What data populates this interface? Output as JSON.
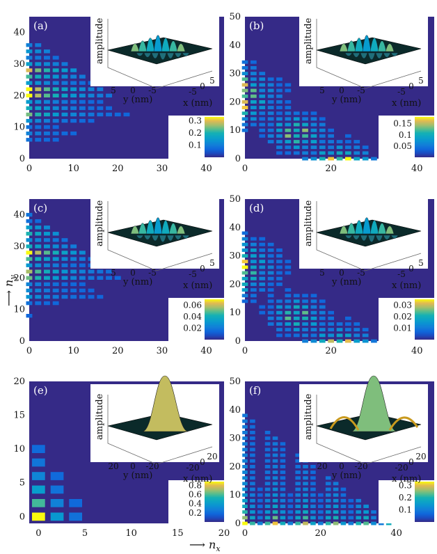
{
  "figure": {
    "xlabel": "⟶ n",
    "xlabel_sub": "x",
    "ylabel": "⟶ n",
    "ylabel_sub": "y",
    "inset_zlabel": "amplitude",
    "inset_ylabel": "y (nm)",
    "inset_xlabel": "x (nm)",
    "colors": {
      "background": "#352a87",
      "mid": "#21b1a4",
      "high": "#f9fb0e"
    }
  },
  "chart_data": [
    {
      "panel": "(a)",
      "type": "heatmap",
      "xlim": [
        0,
        44
      ],
      "ylim": [
        0,
        45
      ],
      "xticks": [
        "0",
        "10",
        "20",
        "30",
        "40"
      ],
      "yticks": [
        "0",
        "10",
        "20",
        "30",
        "40"
      ],
      "xtick_values": [
        0,
        10,
        20,
        30,
        40
      ],
      "ytick_values": [
        0,
        10,
        20,
        30,
        40
      ],
      "colorbar_ticks": [
        "0.3",
        "0.2",
        "0.1"
      ],
      "colorbar_values": [
        0.3,
        0.2,
        0.1
      ],
      "colorbar_max": 0.33,
      "pattern": "diagonal-left",
      "nmax": 38,
      "step": 2,
      "peak_ny": 22,
      "inset_yticks": [
        "5",
        "0",
        "-5"
      ],
      "inset_xticks": [
        "-5",
        "0",
        "5"
      ],
      "inset_surface": "ridges"
    },
    {
      "panel": "(b)",
      "type": "heatmap",
      "xlim": [
        0,
        44
      ],
      "ylim": [
        0,
        50
      ],
      "xticks": [
        "0",
        "20",
        "40"
      ],
      "yticks": [
        "0",
        "10",
        "20",
        "30",
        "40",
        "50"
      ],
      "xtick_values": [
        0,
        20,
        40
      ],
      "ytick_values": [
        0,
        10,
        20,
        30,
        40,
        50
      ],
      "colorbar_ticks": [
        "0.15",
        "0.1",
        "0.05"
      ],
      "colorbar_values": [
        0.15,
        0.1,
        0.05
      ],
      "colorbar_max": 0.18,
      "pattern": "three-lobe",
      "nmax": 42,
      "step": 2,
      "peak_ny": 22,
      "inset_yticks": [
        "5",
        "0",
        "-5"
      ],
      "inset_xticks": [
        "-5",
        "0",
        "5"
      ],
      "inset_surface": "ridges"
    },
    {
      "panel": "(c)",
      "type": "heatmap",
      "xlim": [
        0,
        44
      ],
      "ylim": [
        0,
        45
      ],
      "xticks": [
        "0",
        "10",
        "20",
        "30",
        "40"
      ],
      "yticks": [
        "0",
        "10",
        "20",
        "30",
        "40"
      ],
      "xtick_values": [
        0,
        10,
        20,
        30,
        40
      ],
      "ytick_values": [
        0,
        10,
        20,
        30,
        40
      ],
      "colorbar_ticks": [
        "0.06",
        "0.04",
        "0.02"
      ],
      "colorbar_values": [
        0.06,
        0.04,
        0.02
      ],
      "colorbar_max": 0.07,
      "pattern": "diagonal-left",
      "nmax": 40,
      "step": 2,
      "peak_ny": 26,
      "inset_yticks": [
        "5",
        "0",
        "-5"
      ],
      "inset_xticks": [
        "-5",
        "0",
        "5"
      ],
      "inset_surface": "ridges"
    },
    {
      "panel": "(d)",
      "type": "heatmap",
      "xlim": [
        0,
        44
      ],
      "ylim": [
        0,
        50
      ],
      "xticks": [
        "0",
        "20",
        "40"
      ],
      "yticks": [
        "0",
        "10",
        "20",
        "30",
        "40",
        "50"
      ],
      "xtick_values": [
        0,
        20,
        40
      ],
      "ytick_values": [
        0,
        10,
        20,
        30,
        40,
        50
      ],
      "colorbar_ticks": [
        "0.03",
        "0.02",
        "0.01"
      ],
      "colorbar_values": [
        0.03,
        0.02,
        0.01
      ],
      "colorbar_max": 0.035,
      "pattern": "three-lobe",
      "nmax": 42,
      "step": 2,
      "peak_ny": 26,
      "inset_yticks": [
        "5",
        "0",
        "-5"
      ],
      "inset_xticks": [
        "-5",
        "0",
        "5"
      ],
      "inset_surface": "ridges"
    },
    {
      "panel": "(e)",
      "type": "heatmap",
      "xlim": [
        -1,
        20
      ],
      "ylim": [
        -1,
        20
      ],
      "xticks": [
        "0",
        "5",
        "10",
        "15",
        "20"
      ],
      "yticks": [
        "0",
        "5",
        "10",
        "15",
        "20"
      ],
      "xtick_values": [
        0,
        5,
        10,
        15,
        20
      ],
      "ytick_values": [
        0,
        5,
        10,
        15,
        20
      ],
      "colorbar_ticks": [
        "0.8",
        "0.6",
        "0.4",
        "0.2"
      ],
      "colorbar_values": [
        0.8,
        0.6,
        0.4,
        0.2
      ],
      "colorbar_max": 0.88,
      "pattern": "ground-state",
      "nmax": 12,
      "step": 2,
      "peak_ny": 0,
      "inset_yticks": [
        "20",
        "0",
        "-20"
      ],
      "inset_xticks": [
        "-20",
        "0",
        "20"
      ],
      "inset_surface": "gaussian"
    },
    {
      "panel": "(f)",
      "type": "heatmap",
      "xlim": [
        0,
        50
      ],
      "ylim": [
        0,
        50
      ],
      "xticks": [
        "0",
        "20",
        "40"
      ],
      "yticks": [
        "0",
        "10",
        "20",
        "30",
        "40",
        "50"
      ],
      "xtick_values": [
        0,
        20,
        40
      ],
      "ytick_values": [
        0,
        10,
        20,
        30,
        40,
        50
      ],
      "colorbar_ticks": [
        "0.3",
        "0.2",
        "0.1"
      ],
      "colorbar_values": [
        0.3,
        0.2,
        0.1
      ],
      "colorbar_max": 0.33,
      "pattern": "triangle-fill",
      "nmax": 38,
      "step": 2,
      "peak_ny": 0,
      "inset_yticks": [
        "20",
        "0",
        "-20"
      ],
      "inset_xticks": [
        "-20",
        "0",
        "20"
      ],
      "inset_surface": "gaussian-rings"
    }
  ]
}
